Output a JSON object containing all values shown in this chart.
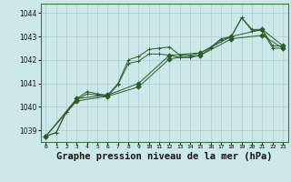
{
  "background_color": "#cce8e8",
  "grid_color": "#aacece",
  "line_color": "#2d5a2d",
  "xlabel": "Graphe pression niveau de la mer (hPa)",
  "xlabel_fontsize": 7.5,
  "ylim": [
    1038.5,
    1044.4
  ],
  "xlim": [
    -0.5,
    23.5
  ],
  "yticks": [
    1039,
    1040,
    1041,
    1042,
    1043,
    1044
  ],
  "xtick_labels": [
    "0",
    "1",
    "2",
    "3",
    "4",
    "5",
    "6",
    "7",
    "8",
    "9",
    "10",
    "11",
    "12",
    "13",
    "14",
    "15",
    "16",
    "17",
    "18",
    "19",
    "20",
    "21",
    "22",
    "23"
  ],
  "series": [
    {
      "x": [
        0,
        1,
        2,
        3,
        4,
        5,
        6,
        7,
        8,
        9,
        10,
        11,
        12,
        13,
        14,
        15,
        16,
        17,
        18,
        19,
        20,
        21,
        22,
        23
      ],
      "y": [
        1038.75,
        1038.9,
        1039.8,
        1040.35,
        1040.65,
        1040.55,
        1040.5,
        1041.0,
        1042.0,
        1042.15,
        1042.45,
        1042.5,
        1042.55,
        1042.2,
        1042.2,
        1042.3,
        1042.55,
        1042.9,
        1043.0,
        1043.8,
        1043.3,
        1043.3,
        1042.6,
        1042.6
      ],
      "linestyle": "solid",
      "marker": "+"
    },
    {
      "x": [
        0,
        1,
        2,
        3,
        4,
        5,
        6,
        7,
        8,
        9,
        10,
        11,
        12,
        13,
        14,
        15,
        16,
        17,
        18,
        19,
        20,
        21,
        22,
        23
      ],
      "y": [
        1038.75,
        1038.9,
        1039.8,
        1040.3,
        1040.55,
        1040.5,
        1040.45,
        1040.95,
        1041.85,
        1041.95,
        1042.25,
        1042.25,
        1042.2,
        1042.1,
        1042.1,
        1042.2,
        1042.5,
        1042.85,
        1043.0,
        1043.8,
        1043.25,
        1043.25,
        1042.5,
        1042.5
      ],
      "linestyle": "solid",
      "marker": "+"
    },
    {
      "x": [
        0,
        3,
        6,
        9,
        12,
        15,
        18,
        21,
        23
      ],
      "y": [
        1038.75,
        1040.35,
        1040.5,
        1041.0,
        1042.2,
        1042.3,
        1043.0,
        1043.3,
        1042.6
      ],
      "linestyle": "solid",
      "marker": "D"
    },
    {
      "x": [
        0,
        3,
        6,
        9,
        12,
        15,
        18,
        21,
        23
      ],
      "y": [
        1038.75,
        1040.25,
        1040.45,
        1040.85,
        1042.05,
        1042.2,
        1042.9,
        1043.05,
        1042.5
      ],
      "linestyle": "solid",
      "marker": "D"
    }
  ]
}
